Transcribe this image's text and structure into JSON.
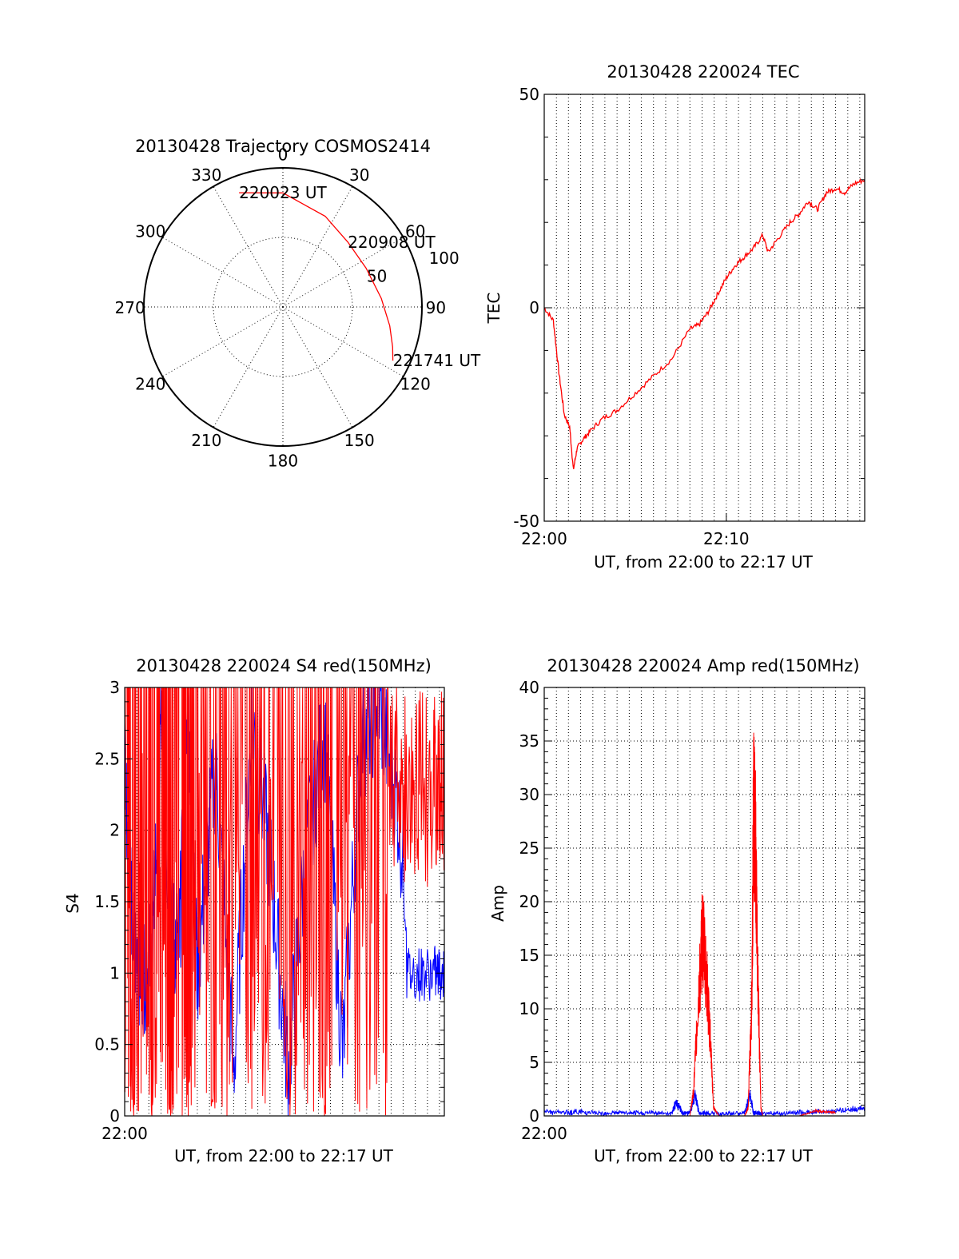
{
  "colors": {
    "red": "#ff0000",
    "blue": "#0000ff",
    "axis": "#000000",
    "grid": "#000000"
  },
  "chart_data": [
    {
      "id": "trajectory",
      "type": "polar",
      "title": "20130428 Trajectory COSMOS2414",
      "angle_labels": [
        "0",
        "30",
        "60",
        "90",
        "120",
        "150",
        "180",
        "210",
        "240",
        "270",
        "300",
        "330"
      ],
      "radial_ticks": [
        {
          "label": "50",
          "r": 50
        },
        {
          "label": "100",
          "r": 100
        }
      ],
      "r_max": 100,
      "track": [
        [
          -21,
          88
        ],
        [
          0,
          82
        ],
        [
          25,
          72
        ],
        [
          45,
          66
        ],
        [
          65,
          66
        ],
        [
          85,
          71
        ],
        [
          100,
          78
        ],
        [
          110,
          84
        ],
        [
          116,
          88
        ]
      ],
      "track_labels": [
        {
          "text": "220023 UT",
          "az": -21,
          "el_r": 88
        },
        {
          "text": "220908 UT",
          "az": 45,
          "el_r": 66
        },
        {
          "text": "221741 UT",
          "az": 116,
          "el_r": 88
        }
      ],
      "series_color": "red"
    },
    {
      "id": "tec",
      "type": "line",
      "title": "20130428 220024 TEC",
      "xlabel": "UT, from 22:00 to 22:17 UT",
      "ylabel": "TEC",
      "xlim": [
        0,
        17.6
      ],
      "ylim": [
        -50,
        50
      ],
      "x_ticks": [
        {
          "v": 0,
          "label": "22:00"
        },
        {
          "v": 10,
          "label": "22:10"
        }
      ],
      "y_ticks": [
        {
          "v": -50,
          "label": "-50"
        },
        {
          "v": 0,
          "label": "0"
        },
        {
          "v": 50,
          "label": "50"
        }
      ],
      "x_grid": [
        0.67,
        1.33,
        2,
        2.67,
        3.33,
        4,
        4.67,
        5.33,
        6,
        6.67,
        7.33,
        8,
        8.67,
        9.33,
        10,
        10.67,
        11.33,
        12,
        12.67,
        13.33,
        14,
        14.67,
        15.33,
        16,
        16.67,
        17.33
      ],
      "y_grid": [
        0
      ],
      "series": [
        {
          "color": "red",
          "x": [
            0,
            0.5,
            0.8,
            1.1,
            1.4,
            1.6,
            1.8,
            2.1,
            2.5,
            3.2,
            4,
            5,
            6,
            7,
            8,
            8.5,
            9,
            9.5,
            10,
            10.5,
            11,
            11.5,
            12,
            12.3,
            12.8,
            13.5,
            14,
            14.5,
            15,
            15.5,
            16,
            16.5,
            17,
            17.6
          ],
          "y": [
            0,
            -3,
            -15,
            -25,
            -28,
            -38,
            -33,
            -31,
            -29,
            -26,
            -24,
            -20,
            -16,
            -12,
            -5,
            -4,
            -1,
            3,
            7,
            10,
            12,
            14,
            17,
            13,
            16,
            20,
            22,
            25,
            23,
            27,
            28,
            27,
            29,
            30
          ]
        }
      ]
    },
    {
      "id": "s4",
      "type": "line",
      "title": "20130428 220024 S4 red(150MHz)",
      "xlabel": "UT, from 22:00 to 22:17 UT",
      "ylabel": "S4",
      "xlim": [
        0,
        17.6
      ],
      "ylim": [
        0,
        3
      ],
      "x_ticks": [
        {
          "v": 0,
          "label": "22:00"
        }
      ],
      "y_ticks": [
        {
          "v": 0,
          "label": "0"
        },
        {
          "v": 0.5,
          "label": "0.5"
        },
        {
          "v": 1,
          "label": "1"
        },
        {
          "v": 1.5,
          "label": "1.5"
        },
        {
          "v": 2,
          "label": "2"
        },
        {
          "v": 2.5,
          "label": "2.5"
        },
        {
          "v": 3,
          "label": "3"
        }
      ],
      "x_grid": [
        0.67,
        1.33,
        2,
        2.67,
        3.33,
        4,
        4.67,
        5.33,
        6,
        6.67,
        7.33,
        8,
        8.67,
        9.33,
        10,
        10.67,
        11.33,
        12,
        12.67,
        13.33,
        14,
        14.67,
        15.33,
        16,
        16.67,
        17.33
      ],
      "y_grid": [
        0.5,
        1,
        1.5,
        2,
        2.5
      ],
      "series": [
        {
          "color": "blue",
          "note_shape": "dense noisy trace",
          "x": [
            0,
            0.5,
            1,
            1.5,
            2,
            2.5,
            3,
            3.5,
            4,
            5,
            6,
            7,
            8,
            9,
            10,
            11,
            12,
            13,
            14,
            15,
            16,
            17,
            17.6
          ],
          "y": [
            2.5,
            1.2,
            1.0,
            1.1,
            2.8,
            1.3,
            1.2,
            2.9,
            1.0,
            2.5,
            0.3,
            2.8,
            1.8,
            0.3,
            1.9,
            2.7,
            0.4,
            2.6,
            2.9,
            2.2,
            1.0,
            1.0,
            1.0
          ]
        },
        {
          "color": "red",
          "note_shape": "dense noisy trace",
          "x": [
            0,
            0.5,
            1,
            1.5,
            2,
            2.5,
            3,
            3.5,
            4,
            5,
            6,
            7,
            8,
            9,
            10,
            11,
            12,
            13,
            14,
            15,
            16,
            17,
            17.6
          ],
          "y": [
            3.0,
            0.0,
            3.0,
            0.0,
            3.0,
            0.0,
            3.0,
            0.0,
            3.0,
            0.0,
            3.0,
            1.5,
            3.0,
            1.2,
            3.0,
            0.0,
            3.0,
            1.8,
            1.6,
            2.8,
            2.0,
            2.9,
            2.7
          ]
        }
      ]
    },
    {
      "id": "amp",
      "type": "line",
      "title": "20130428 220024 Amp red(150MHz)",
      "xlabel": "UT, from 22:00 to 22:17 UT",
      "ylabel": "Amp",
      "xlim": [
        0,
        17.6
      ],
      "ylim": [
        0,
        40
      ],
      "x_ticks": [
        {
          "v": 0,
          "label": "22:00"
        }
      ],
      "y_ticks": [
        {
          "v": 0,
          "label": "0"
        },
        {
          "v": 5,
          "label": "5"
        },
        {
          "v": 10,
          "label": "10"
        },
        {
          "v": 15,
          "label": "15"
        },
        {
          "v": 20,
          "label": "20"
        },
        {
          "v": 25,
          "label": "25"
        },
        {
          "v": 30,
          "label": "30"
        },
        {
          "v": 35,
          "label": "35"
        },
        {
          "v": 40,
          "label": "40"
        }
      ],
      "x_grid": [
        0.67,
        1.33,
        2,
        2.67,
        3.33,
        4,
        4.67,
        5.33,
        6,
        6.67,
        7.33,
        8,
        8.67,
        9.33,
        10,
        10.67,
        11.33,
        12,
        12.67,
        13.33,
        14,
        14.67,
        15.33,
        16,
        16.67,
        17.33
      ],
      "y_grid": [
        5,
        10,
        15,
        20,
        25,
        30,
        35
      ],
      "series": [
        {
          "color": "blue",
          "x": [
            0,
            1,
            2,
            3,
            4,
            5,
            6,
            7,
            7.2,
            7.4,
            7.6,
            8,
            8.3,
            8.5,
            9,
            10,
            11,
            11.3,
            11.5,
            11.8,
            12,
            13,
            14,
            15,
            16,
            17,
            17.6
          ],
          "y": [
            0.5,
            0.4,
            0.5,
            0.3,
            0.4,
            0.3,
            0.4,
            0.3,
            1.5,
            1.2,
            0.3,
            0.4,
            2.5,
            0.4,
            0.3,
            0.3,
            0.3,
            2.5,
            0.4,
            0.3,
            0.3,
            0.3,
            0.4,
            0.5,
            0.6,
            0.8,
            0.9
          ]
        },
        {
          "color": "red",
          "x": [
            0,
            8.0,
            8.2,
            8.5,
            8.7,
            8.9,
            9.1,
            9.3,
            9.6,
            10,
            11.0,
            11.2,
            11.4,
            11.5,
            11.6,
            11.7,
            11.9,
            12,
            14,
            14.9,
            15.5,
            16
          ],
          "y": [
            0,
            0,
            3,
            15,
            22,
            17,
            10,
            1,
            0,
            0,
            0,
            1,
            14,
            37.5,
            33,
            20,
            1,
            0,
            0,
            0.6,
            0.5,
            0.4
          ]
        }
      ]
    }
  ]
}
